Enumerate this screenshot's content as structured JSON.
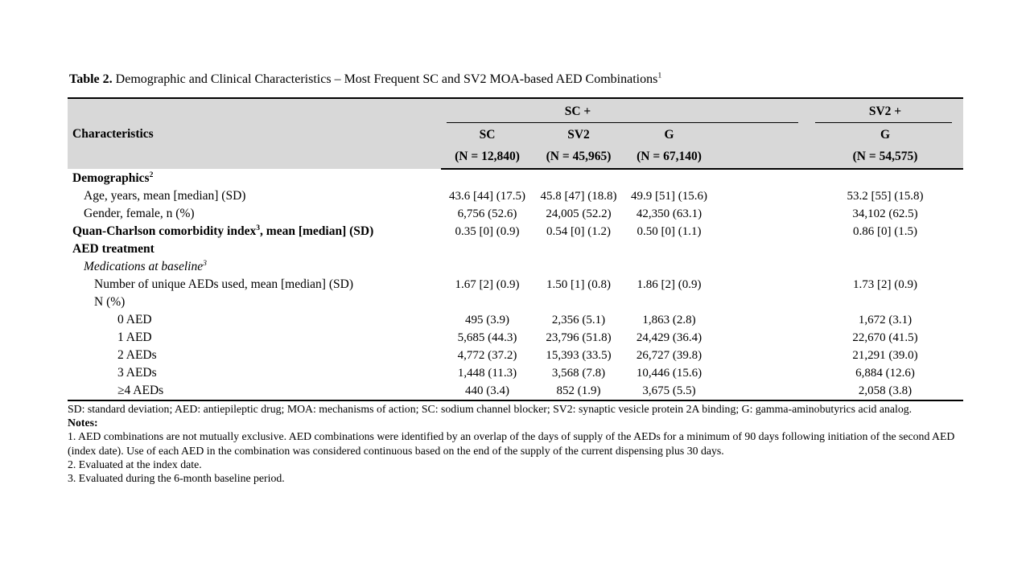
{
  "title": {
    "label": "Table 2.",
    "text": " Demographic and Clinical Characteristics – Most Frequent SC and SV2 MOA-based AED Combinations",
    "sup": "1"
  },
  "table": {
    "characteristics_header": "Characteristics",
    "groups": [
      "SC +",
      "SV2 +"
    ],
    "columns": [
      {
        "name": "SC",
        "n": "(N = 12,840)"
      },
      {
        "name": "SV2",
        "n": "(N = 45,965)"
      },
      {
        "name": "G",
        "n": "(N = 67,140)"
      },
      {
        "name": "G",
        "n": "(N = 54,575)"
      }
    ],
    "rows": [
      {
        "label": "Demographics",
        "sup": "2",
        "style": "bold",
        "indent": 0,
        "values": [
          "",
          "",
          "",
          ""
        ]
      },
      {
        "label": "Age, years, mean [median] (SD)",
        "indent": 1,
        "values": [
          "43.6 [44] (17.5)",
          "45.8 [47] (18.8)",
          "49.9 [51] (15.6)",
          "53.2 [55] (15.8)"
        ]
      },
      {
        "label": "Gender, female, n (%)",
        "indent": 1,
        "values": [
          "6,756 (52.6)",
          "24,005 (52.2)",
          "42,350 (63.1)",
          "34,102 (62.5)"
        ]
      },
      {
        "label": "Quan-Charlson comorbidity index",
        "sup": "3",
        "label2": ", mean [median] (SD)",
        "style": "bold",
        "indent": 0,
        "values": [
          "0.35 [0] (0.9)",
          "0.54 [0] (1.2)",
          "0.50 [0] (1.1)",
          "0.86 [0] (1.5)"
        ]
      },
      {
        "label": "AED treatment",
        "style": "bold",
        "indent": 0,
        "values": [
          "",
          "",
          "",
          ""
        ]
      },
      {
        "label": "Medications at baseline",
        "sup": "3",
        "style": "italic",
        "indent": 1,
        "values": [
          "",
          "",
          "",
          ""
        ]
      },
      {
        "label": "Number of unique AEDs used, mean [median] (SD)",
        "indent": 2,
        "values": [
          "1.67 [2] (0.9)",
          "1.50 [1] (0.8)",
          "1.86 [2] (0.9)",
          "1.73 [2] (0.9)"
        ]
      },
      {
        "label": "N (%)",
        "indent": 2,
        "values": [
          "",
          "",
          "",
          ""
        ]
      },
      {
        "label": "0 AED",
        "indent": 3,
        "values": [
          "495 (3.9)",
          "2,356 (5.1)",
          "1,863 (2.8)",
          "1,672 (3.1)"
        ]
      },
      {
        "label": "1 AED",
        "indent": 3,
        "values": [
          "5,685 (44.3)",
          "23,796 (51.8)",
          "24,429 (36.4)",
          "22,670 (41.5)"
        ]
      },
      {
        "label": "2 AEDs",
        "indent": 3,
        "values": [
          "4,772 (37.2)",
          "15,393 (33.5)",
          "26,727 (39.8)",
          "21,291 (39.0)"
        ]
      },
      {
        "label": "3 AEDs",
        "indent": 3,
        "values": [
          "1,448 (11.3)",
          "3,568 (7.8)",
          "10,446 (15.6)",
          "6,884 (12.6)"
        ]
      },
      {
        "label": "≥4 AEDs",
        "indent": 3,
        "values": [
          "440 (3.4)",
          "852 (1.9)",
          "3,675 (5.5)",
          "2,058 (3.8)"
        ]
      }
    ]
  },
  "footnotes": {
    "abbreviations": "SD: standard deviation; AED: antiepileptic drug; MOA: mechanisms of action; SC: sodium channel blocker; SV2: synaptic vesicle protein 2A binding; G: gamma-aminobutyrics acid analog.",
    "notes_label": "Notes:",
    "notes": [
      "1. AED combinations are not mutually exclusive. AED combinations were identified by an overlap of the days of supply of the AEDs for a minimum of 90 days following initiation of the second AED (index date). Use of each AED in the combination was considered continuous based on the end of the supply of the current dispensing plus 30 days.",
      "2. Evaluated at the index date.",
      "3. Evaluated during the 6-month baseline period."
    ]
  },
  "colors": {
    "header_bg": "#d8d8d8",
    "border": "#000000",
    "text": "#000000"
  }
}
